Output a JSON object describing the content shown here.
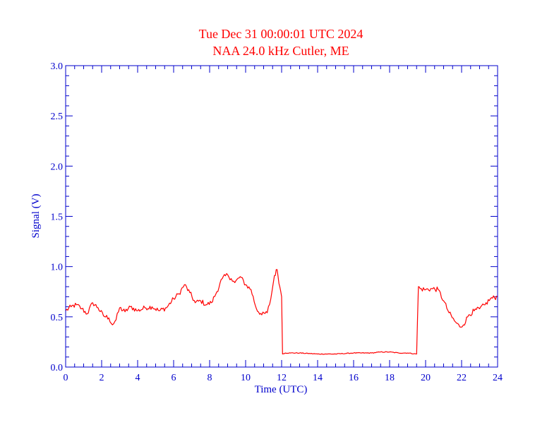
{
  "colors": {
    "axis": "#0000cc",
    "series": "#ff0000",
    "title": "#ff0000",
    "background": "#ffffff"
  },
  "chart_data": {
    "type": "line",
    "title": "Tue Dec 31 00:00:01 UTC 2024",
    "subtitle": "NAA 24.0 kHz Cutler, ME",
    "xlabel": "Time (UTC)",
    "ylabel": "Signal (V)",
    "xlim": [
      0,
      24
    ],
    "ylim": [
      0,
      3
    ],
    "xticks": [
      "0",
      "2",
      "4",
      "6",
      "8",
      "10",
      "12",
      "14",
      "16",
      "18",
      "20",
      "22",
      "24"
    ],
    "yticks": [
      "0.0",
      "0.5",
      "1.0",
      "1.5",
      "2.0",
      "2.5",
      "3.0"
    ],
    "grid": false,
    "series": [
      {
        "name": "",
        "x": [
          0,
          0.3,
          0.6,
          0.9,
          1.2,
          1.5,
          1.8,
          2.1,
          2.4,
          2.6,
          2.8,
          3.0,
          3.3,
          3.6,
          4.0,
          4.4,
          4.8,
          5.2,
          5.6,
          6.0,
          6.3,
          6.6,
          6.9,
          7.2,
          7.5,
          7.8,
          8.1,
          8.4,
          8.7,
          9.0,
          9.2,
          9.4,
          9.7,
          10.0,
          10.3,
          10.6,
          10.9,
          11.2,
          11.4,
          11.6,
          11.75,
          11.9,
          12.0,
          12.05,
          12.2,
          12.5,
          13,
          14,
          15,
          16,
          17,
          17.5,
          18,
          18.5,
          19.0,
          19.5,
          19.6,
          19.7,
          20.0,
          20.4,
          20.7,
          21.0,
          21.3,
          21.6,
          21.9,
          22.1,
          22.4,
          22.7,
          23.0,
          23.3,
          23.6,
          24.0
        ],
        "y": [
          0.56,
          0.6,
          0.62,
          0.58,
          0.53,
          0.64,
          0.59,
          0.51,
          0.49,
          0.42,
          0.47,
          0.59,
          0.55,
          0.6,
          0.56,
          0.59,
          0.6,
          0.56,
          0.59,
          0.68,
          0.73,
          0.82,
          0.74,
          0.64,
          0.66,
          0.62,
          0.64,
          0.75,
          0.88,
          0.92,
          0.88,
          0.84,
          0.9,
          0.82,
          0.77,
          0.58,
          0.52,
          0.54,
          0.68,
          0.91,
          0.97,
          0.8,
          0.7,
          0.13,
          0.14,
          0.14,
          0.14,
          0.13,
          0.13,
          0.14,
          0.14,
          0.15,
          0.15,
          0.14,
          0.14,
          0.13,
          0.8,
          0.78,
          0.77,
          0.78,
          0.77,
          0.66,
          0.54,
          0.46,
          0.4,
          0.42,
          0.52,
          0.56,
          0.58,
          0.62,
          0.68,
          0.7
        ]
      }
    ]
  }
}
